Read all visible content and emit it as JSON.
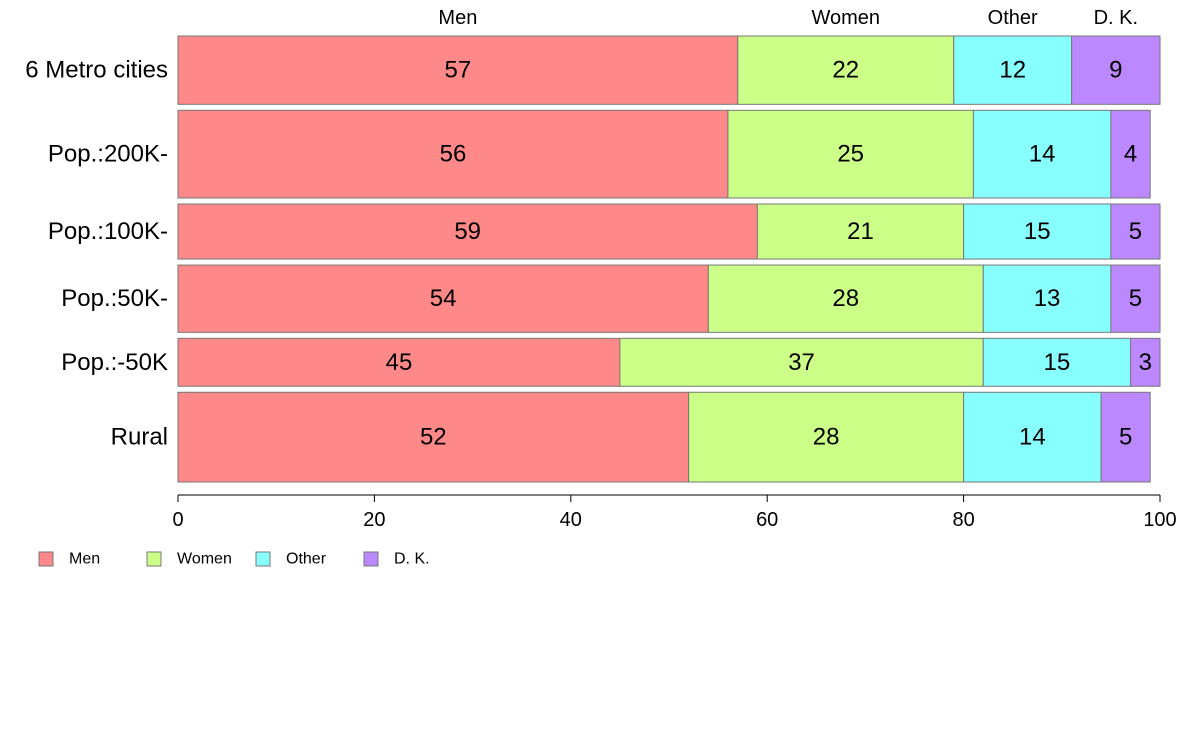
{
  "chart_data": {
    "type": "bar",
    "orientation": "horizontal",
    "stacked": true,
    "categories": [
      "6 Metro cities",
      "Pop.:200K-",
      "Pop.:100K-",
      "Pop.:50K-",
      "Pop.:-50K",
      "Rural"
    ],
    "bar_widths_relative": [
      67,
      86,
      54,
      66,
      47,
      88
    ],
    "series": [
      {
        "name": "Men",
        "color": "#FF8888",
        "values": [
          57,
          56,
          59,
          54,
          45,
          52
        ]
      },
      {
        "name": "Women",
        "color": "#CCFF88",
        "values": [
          22,
          25,
          21,
          28,
          37,
          28
        ]
      },
      {
        "name": "Other",
        "color": "#88FFFF",
        "values": [
          12,
          14,
          15,
          13,
          15,
          14
        ]
      },
      {
        "name": "D. K.",
        "color": "#BB88FF",
        "values": [
          9,
          4,
          5,
          5,
          3,
          5
        ]
      }
    ],
    "column_labels": [
      "Men",
      "Women",
      "Other",
      "D. K."
    ],
    "xlim": [
      0,
      100
    ],
    "xticks": [
      0,
      20,
      40,
      60,
      80,
      100
    ],
    "legend_position": "bottom-left",
    "grid": false
  }
}
